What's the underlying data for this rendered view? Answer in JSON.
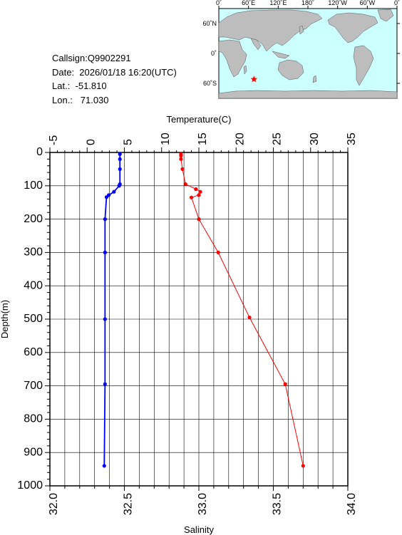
{
  "info": {
    "callsign_line": "Callsign:Q9902291",
    "date_line": "Date:  2026/01/18 16:20(UTC)",
    "lat_line": "Lat.:  -51.810",
    "lon_line": "Lon.:   71.030"
  },
  "map": {
    "lon_labels": [
      "0˚",
      "60˚E",
      "120˚E",
      "180˚",
      "120˚W",
      "60˚W",
      "0˚"
    ],
    "lat_labels": [
      "60˚N",
      "0˚",
      "60˚S"
    ],
    "ocean_color": "#ccffff",
    "land_color": "#bdbdbd",
    "marker_color": "#ff0000",
    "marker": {
      "lon": 71.03,
      "lat": -51.81
    }
  },
  "chart_data": {
    "type": "line",
    "top_axis": {
      "label": "Temperature(C)",
      "range": [
        -5,
        35
      ],
      "ticks": [
        "-5",
        "0",
        "5",
        "10",
        "15",
        "20",
        "25",
        "30",
        "35"
      ]
    },
    "bottom_axis": {
      "label": "Salinity",
      "range": [
        32.0,
        34.0
      ],
      "ticks": [
        "32.0",
        "32.5",
        "33.0",
        "33.5",
        "34.0"
      ]
    },
    "y_axis": {
      "label": "Depth(m)",
      "range": [
        0,
        1000
      ],
      "inverted": true,
      "ticks": [
        "0",
        "100",
        "200",
        "300",
        "400",
        "500",
        "600",
        "700",
        "800",
        "900",
        "1000"
      ]
    },
    "grid": true,
    "series": [
      {
        "color": "#0000ff",
        "axis": "temperature",
        "points": [
          [
            4.4,
            5
          ],
          [
            4.4,
            20
          ],
          [
            4.4,
            50
          ],
          [
            4.4,
            95
          ],
          [
            4.3,
            100
          ],
          [
            3.6,
            118
          ],
          [
            2.9,
            128
          ],
          [
            2.6,
            134
          ],
          [
            2.4,
            200
          ],
          [
            2.4,
            300
          ],
          [
            2.4,
            500
          ],
          [
            2.4,
            695
          ],
          [
            2.3,
            940
          ]
        ]
      },
      {
        "color": "#ff0000",
        "axis": "salinity",
        "points": [
          [
            32.88,
            5
          ],
          [
            32.88,
            10
          ],
          [
            32.88,
            20
          ],
          [
            32.89,
            50
          ],
          [
            32.91,
            95
          ],
          [
            32.98,
            110
          ],
          [
            33.01,
            118
          ],
          [
            33.0,
            128
          ],
          [
            32.95,
            135
          ],
          [
            33.0,
            200
          ],
          [
            33.13,
            300
          ],
          [
            33.34,
            495
          ],
          [
            33.58,
            695
          ],
          [
            33.7,
            940
          ]
        ]
      }
    ]
  }
}
